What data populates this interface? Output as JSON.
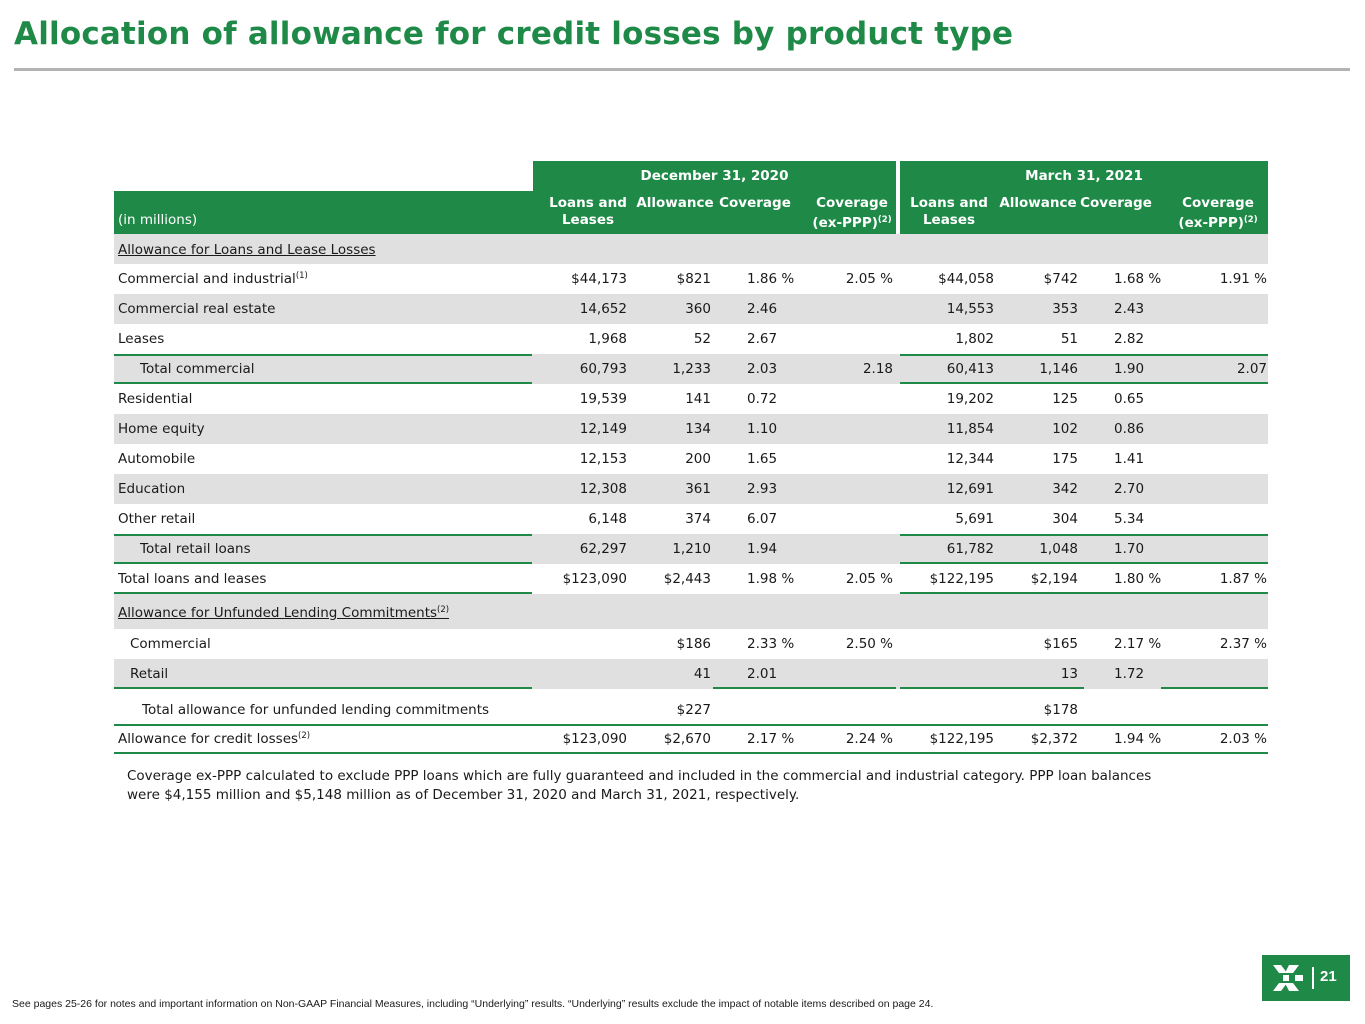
{
  "title": "Allocation of allowance for credit losses by product type",
  "header": {
    "period1": "December 31, 2020",
    "period2": "March 31, 2021",
    "unit_label": "(in millions)",
    "col_loans_1": "Loans and",
    "col_loans_2": "Leases",
    "col_allowance": "Allowance",
    "col_coverage": "Coverage",
    "col_coverage_ex_1": "Coverage",
    "col_coverage_ex_2": "(ex-PPP)",
    "sup2": "(2)"
  },
  "sections": {
    "allowance_loans": "Allowance for Loans and Lease Losses",
    "unfunded": "Allowance for Unfunded Lending Commitments",
    "unfunded_sup": "(2)"
  },
  "rows": [
    {
      "label": "Commercial and industrial",
      "sup": "(1)",
      "d_loans": "$44,173",
      "d_allow": "$821",
      "d_cov": "1.86 %",
      "d_covx": "2.05 %",
      "m_loans": "$44,058",
      "m_allow": "$742",
      "m_cov": "1.68 %",
      "m_covx": "1.91 %"
    },
    {
      "label": "Commercial real estate",
      "sup": "",
      "d_loans": "14,652",
      "d_allow": "360",
      "d_cov": "2.46",
      "d_covx": "",
      "m_loans": "14,553",
      "m_allow": "353",
      "m_cov": "2.43",
      "m_covx": ""
    },
    {
      "label": "Leases",
      "sup": "",
      "d_loans": "1,968",
      "d_allow": "52",
      "d_cov": "2.67",
      "d_covx": "",
      "m_loans": "1,802",
      "m_allow": "51",
      "m_cov": "2.82",
      "m_covx": ""
    },
    {
      "label": "Total commercial",
      "sup": "",
      "d_loans": "60,793",
      "d_allow": "1,233",
      "d_cov": "2.03",
      "d_covx": "2.18",
      "m_loans": "60,413",
      "m_allow": "1,146",
      "m_cov": "1.90",
      "m_covx": "2.07"
    },
    {
      "label": "Residential",
      "sup": "",
      "d_loans": "19,539",
      "d_allow": "141",
      "d_cov": "0.72",
      "d_covx": "",
      "m_loans": "19,202",
      "m_allow": "125",
      "m_cov": "0.65",
      "m_covx": ""
    },
    {
      "label": "Home equity",
      "sup": "",
      "d_loans": "12,149",
      "d_allow": "134",
      "d_cov": "1.10",
      "d_covx": "",
      "m_loans": "11,854",
      "m_allow": "102",
      "m_cov": "0.86",
      "m_covx": ""
    },
    {
      "label": "Automobile",
      "sup": "",
      "d_loans": "12,153",
      "d_allow": "200",
      "d_cov": "1.65",
      "d_covx": "",
      "m_loans": "12,344",
      "m_allow": "175",
      "m_cov": "1.41",
      "m_covx": ""
    },
    {
      "label": "Education",
      "sup": "",
      "d_loans": "12,308",
      "d_allow": "361",
      "d_cov": "2.93",
      "d_covx": "",
      "m_loans": "12,691",
      "m_allow": "342",
      "m_cov": "2.70",
      "m_covx": ""
    },
    {
      "label": "Other retail",
      "sup": "",
      "d_loans": "6,148",
      "d_allow": "374",
      "d_cov": "6.07",
      "d_covx": "",
      "m_loans": "5,691",
      "m_allow": "304",
      "m_cov": "5.34",
      "m_covx": ""
    },
    {
      "label": "Total retail loans",
      "sup": "",
      "d_loans": "62,297",
      "d_allow": "1,210",
      "d_cov": "1.94",
      "d_covx": "",
      "m_loans": "61,782",
      "m_allow": "1,048",
      "m_cov": "1.70",
      "m_covx": ""
    },
    {
      "label": "Total loans and leases",
      "sup": "",
      "d_loans": "$123,090",
      "d_allow": "$2,443",
      "d_cov": "1.98 %",
      "d_covx": "2.05 %",
      "m_loans": "$122,195",
      "m_allow": "$2,194",
      "m_cov": "1.80 %",
      "m_covx": "1.87 %"
    }
  ],
  "unfunded_rows": [
    {
      "label": "Commercial",
      "d_allow": "$186",
      "d_cov": "2.33 %",
      "d_covx": "2.50 %",
      "m_allow": "$165",
      "m_cov": "2.17 %",
      "m_covx": "2.37 %"
    },
    {
      "label": "Retail",
      "d_allow": "41",
      "d_cov": "2.01",
      "d_covx": "",
      "m_allow": "13",
      "m_cov": "1.72",
      "m_covx": ""
    },
    {
      "label": "Total allowance for unfunded lending commitments",
      "d_allow": "$227",
      "d_cov": "",
      "d_covx": "",
      "m_allow": "$178",
      "m_cov": "",
      "m_covx": ""
    }
  ],
  "final_row": {
    "label": "Allowance for credit losses",
    "sup": "(2)",
    "d_loans": "$123,090",
    "d_allow": "$2,670",
    "d_cov": "2.17 %",
    "d_covx": "2.24 %",
    "m_loans": "$122,195",
    "m_allow": "$2,372",
    "m_cov": "1.94 %",
    "m_covx": "2.03 %"
  },
  "note": "Coverage ex-PPP calculated to exclude PPP loans which are fully guaranteed and included in the commercial and industrial category. PPP loan balances were $4,155 million and $5,148 million as of December 31, 2020 and March 31, 2021, respectively.",
  "footer": "See pages 25-26 for notes and important information on Non-GAAP Financial Measures, including “Underlying” results. “Underlying” results exclude the impact of notable items described on page 24.",
  "page_number": "21",
  "colors": {
    "brand_green": "#1f8a48",
    "shade": "#e0e0e0"
  },
  "logo_icon": "citizens-logo-icon"
}
